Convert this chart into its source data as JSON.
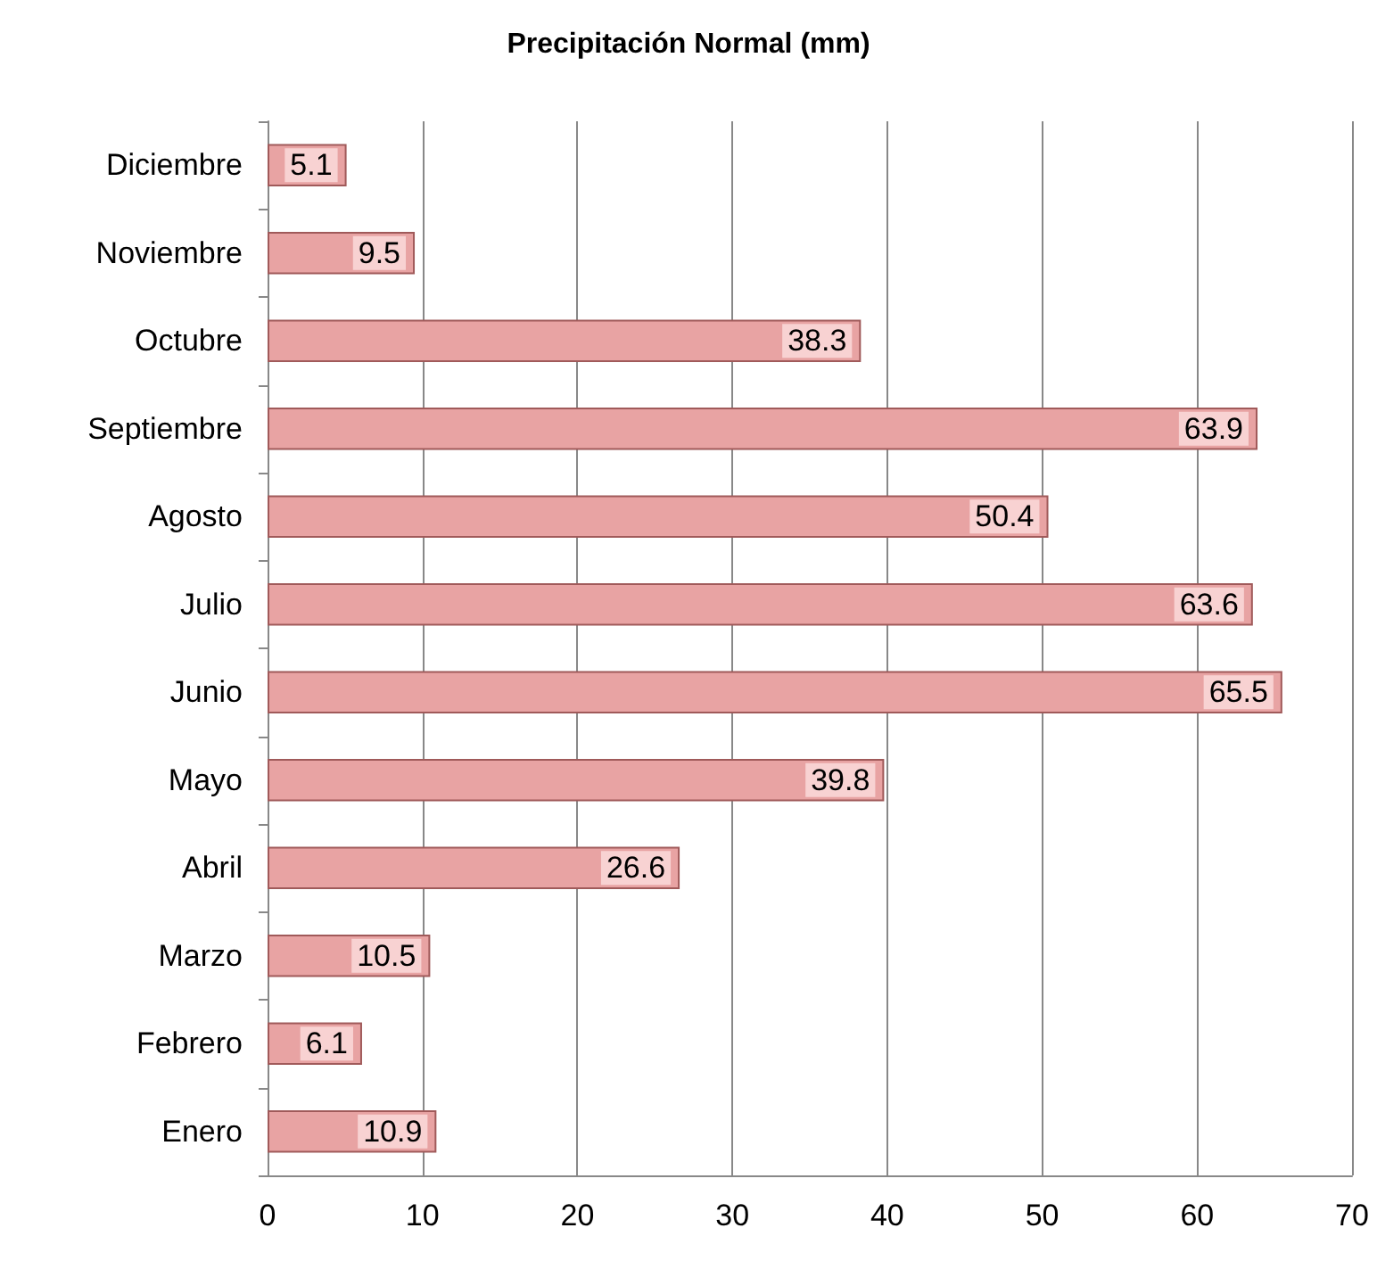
{
  "chart_data": {
    "type": "bar",
    "orientation": "horizontal",
    "title": "Precipitación Normal (mm)",
    "categories": [
      "Diciembre",
      "Noviembre",
      "Octubre",
      "Septiembre",
      "Agosto",
      "Julio",
      "Junio",
      "Mayo",
      "Abril",
      "Marzo",
      "Febrero",
      "Enero"
    ],
    "values": [
      5.1,
      9.5,
      38.3,
      63.9,
      50.4,
      63.6,
      65.5,
      39.8,
      26.6,
      10.5,
      6.1,
      10.9
    ],
    "color": "#e8a3a3",
    "xlim": [
      0,
      70
    ],
    "xticks": [
      0,
      10,
      20,
      30,
      40,
      50,
      60,
      70
    ],
    "grid": "x",
    "data_labels": true
  }
}
